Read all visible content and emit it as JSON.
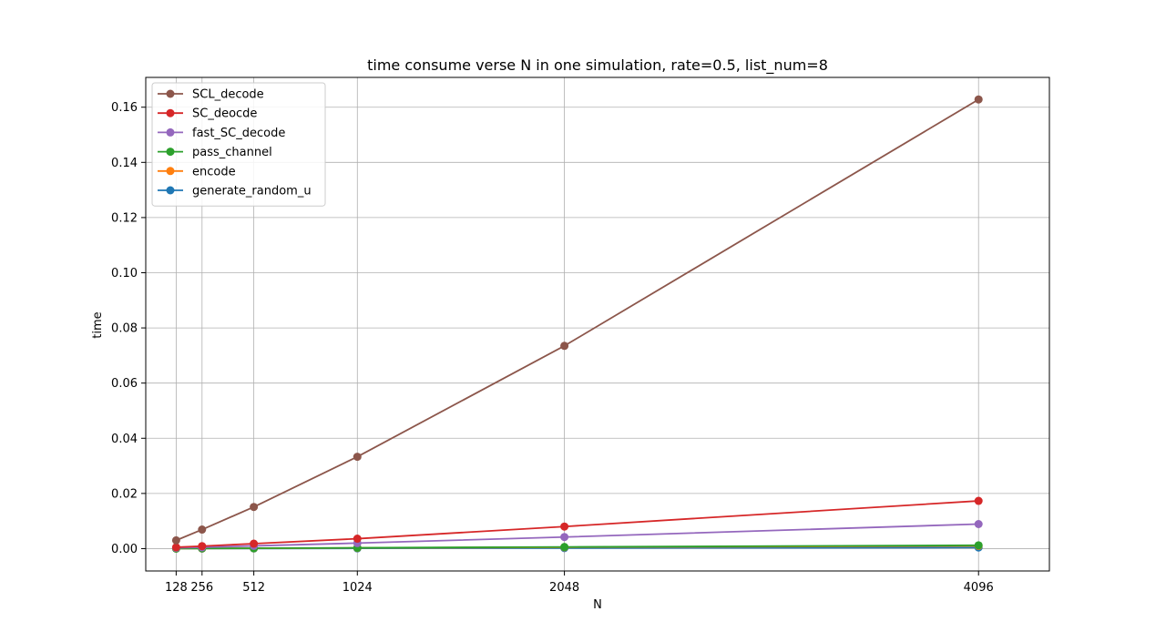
{
  "chart_data": {
    "type": "line",
    "title": "time consume verse N in one simulation, rate=0.5, list_num=8",
    "xlabel": "N",
    "ylabel": "time",
    "x": [
      128,
      256,
      512,
      1024,
      2048,
      4096
    ],
    "x_tick_labels": [
      "128",
      "256",
      "512",
      "1024",
      "2048",
      "4096"
    ],
    "xlim": [
      -22.4,
      4446.4
    ],
    "ylim": [
      -0.0081,
      0.1708
    ],
    "y_ticks": [
      0.0,
      0.02,
      0.04,
      0.06,
      0.08,
      0.1,
      0.12,
      0.14,
      0.16
    ],
    "y_tick_labels": [
      "0.00",
      "0.02",
      "0.04",
      "0.06",
      "0.08",
      "0.10",
      "0.12",
      "0.14",
      "0.16"
    ],
    "grid": true,
    "legend_position": "top-left",
    "series": [
      {
        "name": "generate_random_u",
        "color": "#1f77b4",
        "values": [
          2e-05,
          3e-05,
          5e-05,
          0.0001,
          0.0002,
          0.0004
        ]
      },
      {
        "name": "encode",
        "color": "#ff7f0e",
        "values": [
          3e-05,
          6e-05,
          0.00012,
          0.00025,
          0.0005,
          0.001
        ]
      },
      {
        "name": "pass_channel",
        "color": "#2ca02c",
        "values": [
          4e-05,
          7e-05,
          0.00015,
          0.0003,
          0.0006,
          0.0012
        ]
      },
      {
        "name": "fast_SC_decode",
        "color": "#9467bd",
        "values": [
          0.0003,
          0.0005,
          0.001,
          0.002,
          0.0042,
          0.0089
        ]
      },
      {
        "name": "SC_deocde",
        "color": "#d62728",
        "values": [
          0.0005,
          0.0009,
          0.0018,
          0.0036,
          0.008,
          0.0173
        ]
      },
      {
        "name": "SCL_decode",
        "color": "#8c564b",
        "values": [
          0.003,
          0.0069,
          0.0151,
          0.0333,
          0.0735,
          0.1628
        ]
      }
    ],
    "legend_order": [
      "SCL_decode",
      "SC_deocde",
      "fast_SC_decode",
      "pass_channel",
      "encode",
      "generate_random_u"
    ]
  }
}
